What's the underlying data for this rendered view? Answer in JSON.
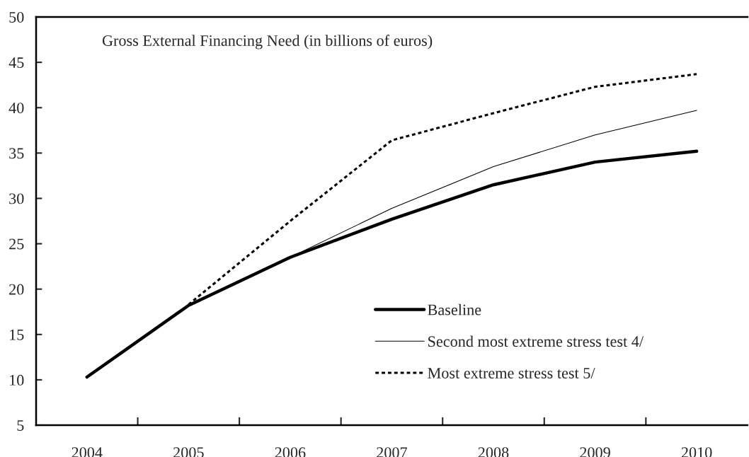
{
  "chart_data": {
    "type": "line",
    "title": "Gross External Financing Need (in billions of euros)",
    "categories": [
      "2004",
      "2005",
      "2006",
      "2007",
      "2008",
      "2009",
      "2010"
    ],
    "series": [
      {
        "name": "Baseline",
        "color": "#000000",
        "line_style": "solid",
        "values": [
          10.3,
          18.2,
          23.5,
          27.7,
          31.5,
          34.0,
          35.2
        ]
      },
      {
        "name": "Second most extreme stress test 4/",
        "color": "#000000",
        "line_style": "solid",
        "values": [
          null,
          null,
          23.5,
          28.9,
          33.5,
          37.0,
          39.7
        ]
      },
      {
        "name": "Most extreme stress test 5/",
        "color": "#000000",
        "line_style": "dotted",
        "values": [
          null,
          18.3,
          27.5,
          36.4,
          39.4,
          42.3,
          43.7
        ]
      }
    ],
    "ylim": [
      5,
      50
    ],
    "yticks": [
      5,
      10,
      15,
      20,
      25,
      30,
      35,
      40,
      45,
      50
    ],
    "grid": false,
    "legend": "bottom right",
    "marker": "none"
  }
}
